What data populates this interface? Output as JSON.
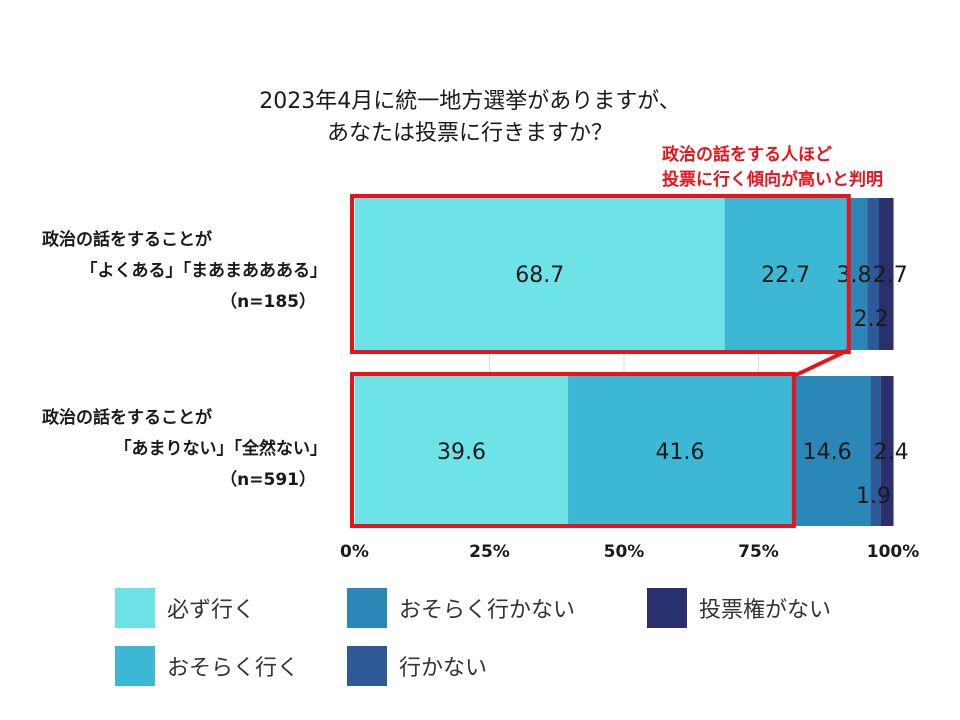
{
  "chart_data": {
    "type": "bar",
    "orientation": "horizontal",
    "stacked": true,
    "title_lines": [
      "2023年4月に統一地方選挙がありますが、",
      "あなたは投票に行きますか？"
    ],
    "annotation_lines": [
      "政治の話をする人ほど",
      "投票に行く傾向が高いと判明"
    ],
    "categories": [
      {
        "lines": [
          "政治の話をすることが",
          "「よくある」「まあまああある」",
          "（n=185）"
        ]
      },
      {
        "lines": [
          "政治の話をすることが",
          "「あまりない」「全然ない」",
          "（n=591）"
        ]
      }
    ],
    "series": [
      {
        "name": "必ず行く",
        "color": "#6de3e8",
        "values": [
          68.7,
          39.6
        ]
      },
      {
        "name": "おそらく行く",
        "color": "#3cb8d4",
        "values": [
          22.7,
          41.6
        ]
      },
      {
        "name": "おそらく行かない",
        "color": "#2a87b8",
        "values": [
          3.8,
          14.6
        ]
      },
      {
        "name": "行かない",
        "color": "#2f5a99",
        "values": [
          2.2,
          1.9
        ]
      },
      {
        "name": "投票権がない",
        "color": "#2a2f6e",
        "values": [
          2.7,
          2.4
        ]
      }
    ],
    "xlim": [
      0,
      100
    ],
    "xticks": [
      "0%",
      "25%",
      "50%",
      "75%",
      "100%"
    ],
    "highlight_color": "#e8141c"
  }
}
